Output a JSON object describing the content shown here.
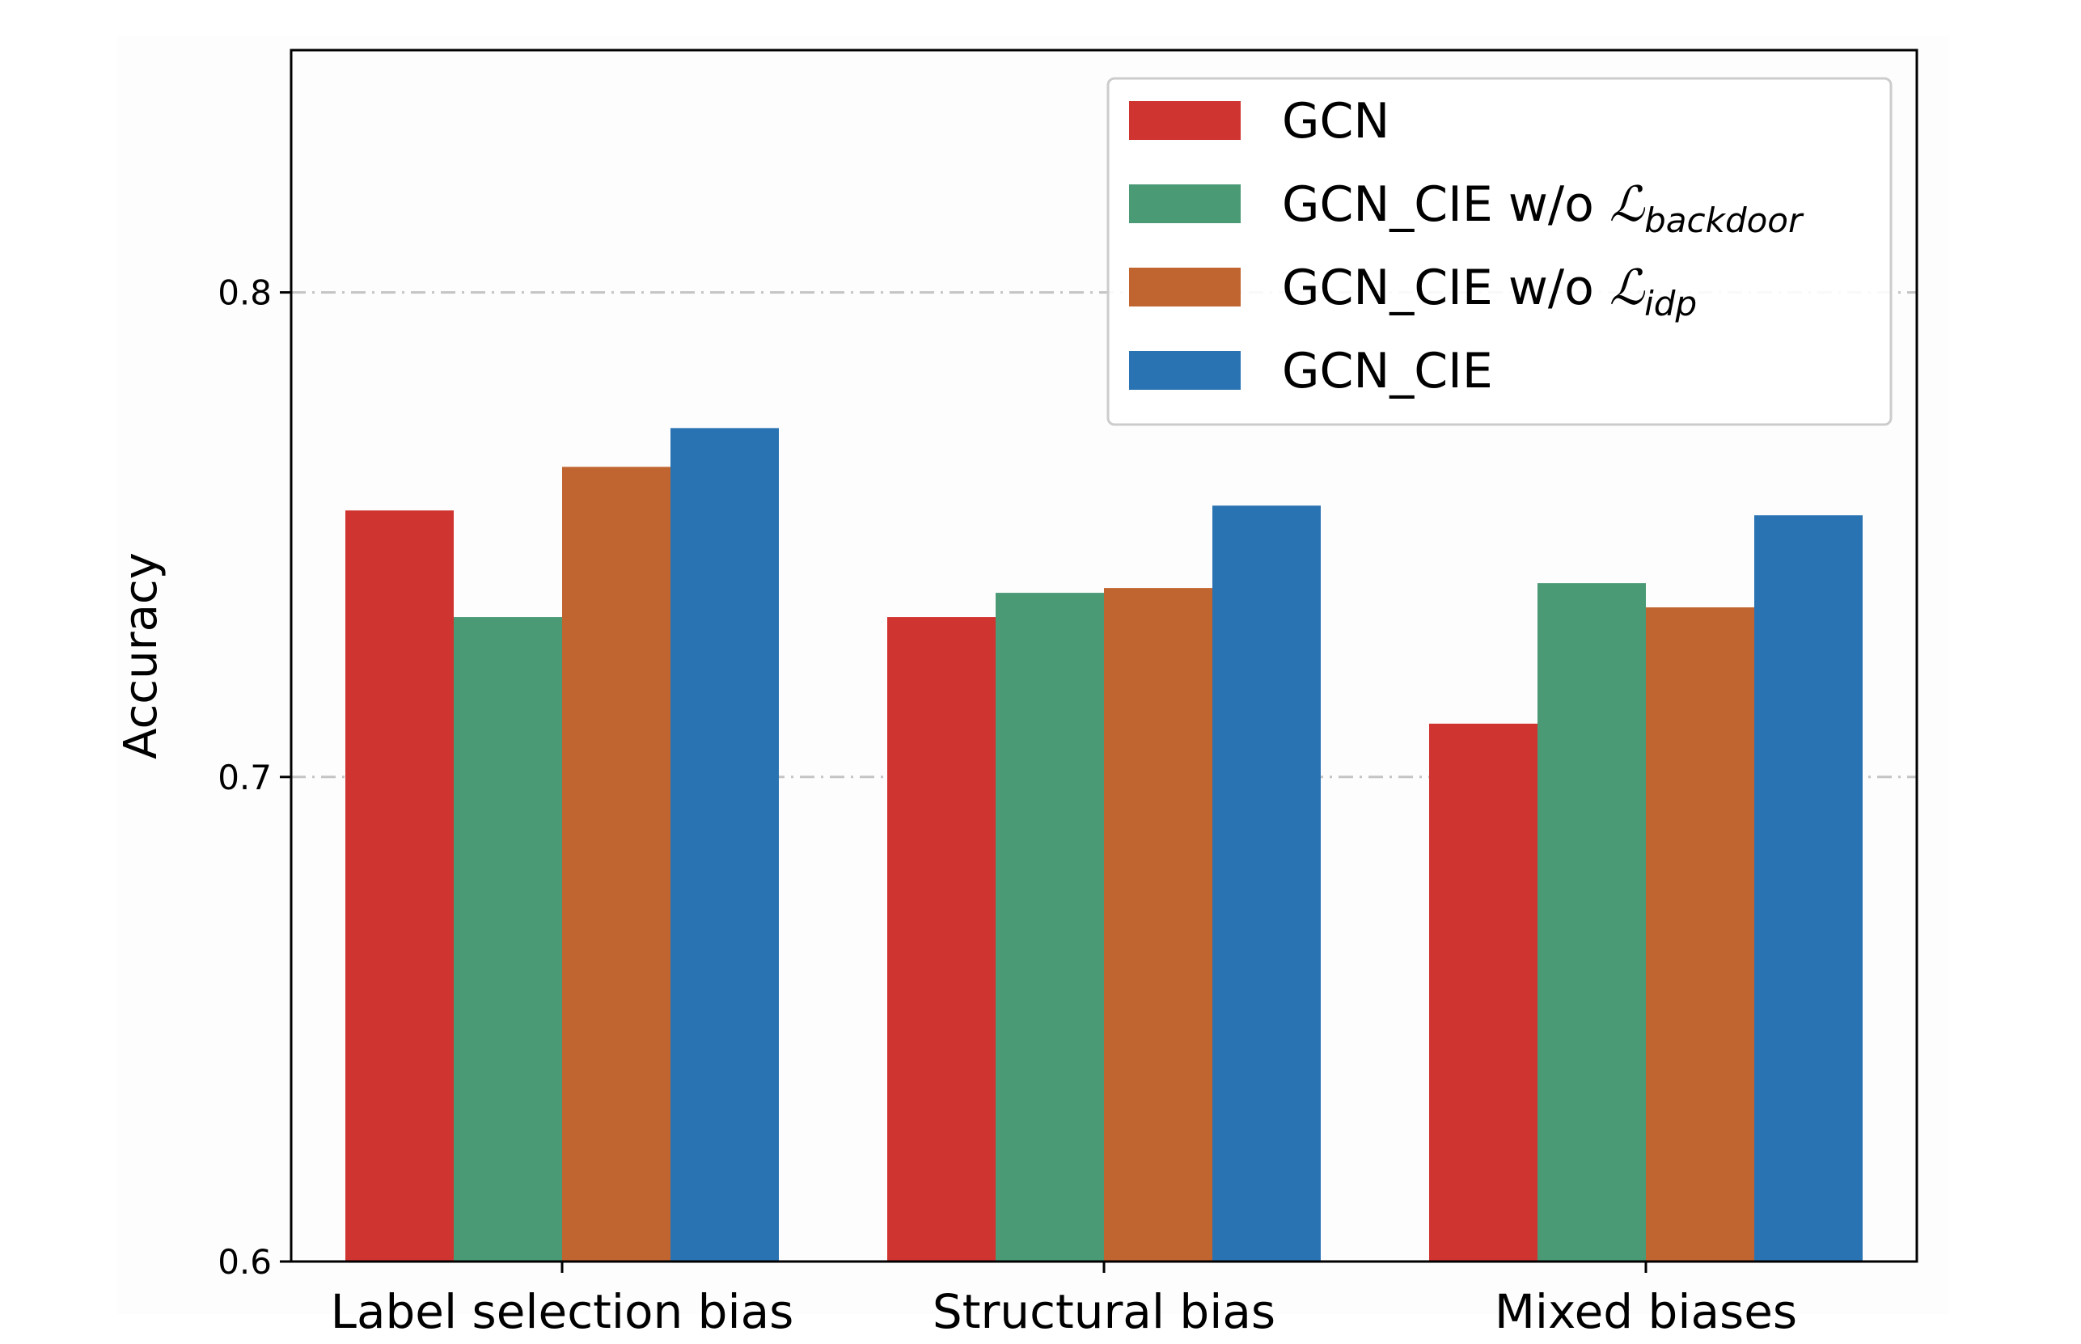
{
  "chart_data": {
    "type": "bar",
    "title": "",
    "xlabel": "",
    "ylabel": "Accuracy",
    "categories": [
      "Label selection bias",
      "Structural bias",
      "Mixed biases"
    ],
    "ylim": [
      0.6,
      0.85
    ],
    "yticks": [
      "0.6",
      "0.7",
      "0.8"
    ],
    "grid": "horizontal dash-dot at major ticks",
    "legend_position": "top-right",
    "series": [
      {
        "name": "GCN",
        "name_base": "GCN",
        "name_sub": "",
        "color": "#d03430",
        "values": [
          0.755,
          0.733,
          0.711
        ]
      },
      {
        "name": "GCN_CIE w/o L_backdoor",
        "name_base": "GCN_CIE w/o ",
        "name_script": "ℒ",
        "name_sub": "backdoor",
        "color": "#4a9a76",
        "values": [
          0.733,
          0.738,
          0.74
        ]
      },
      {
        "name": "GCN_CIE w/o L_idp",
        "name_base": "GCN_CIE w/o ",
        "name_script": "ℒ",
        "name_sub": "idp",
        "color": "#c06430",
        "values": [
          0.764,
          0.739,
          0.735
        ]
      },
      {
        "name": "GCN_CIE",
        "name_base": "GCN_CIE",
        "name_sub": "",
        "color": "#2a73b3",
        "values": [
          0.772,
          0.756,
          0.754
        ]
      }
    ]
  }
}
